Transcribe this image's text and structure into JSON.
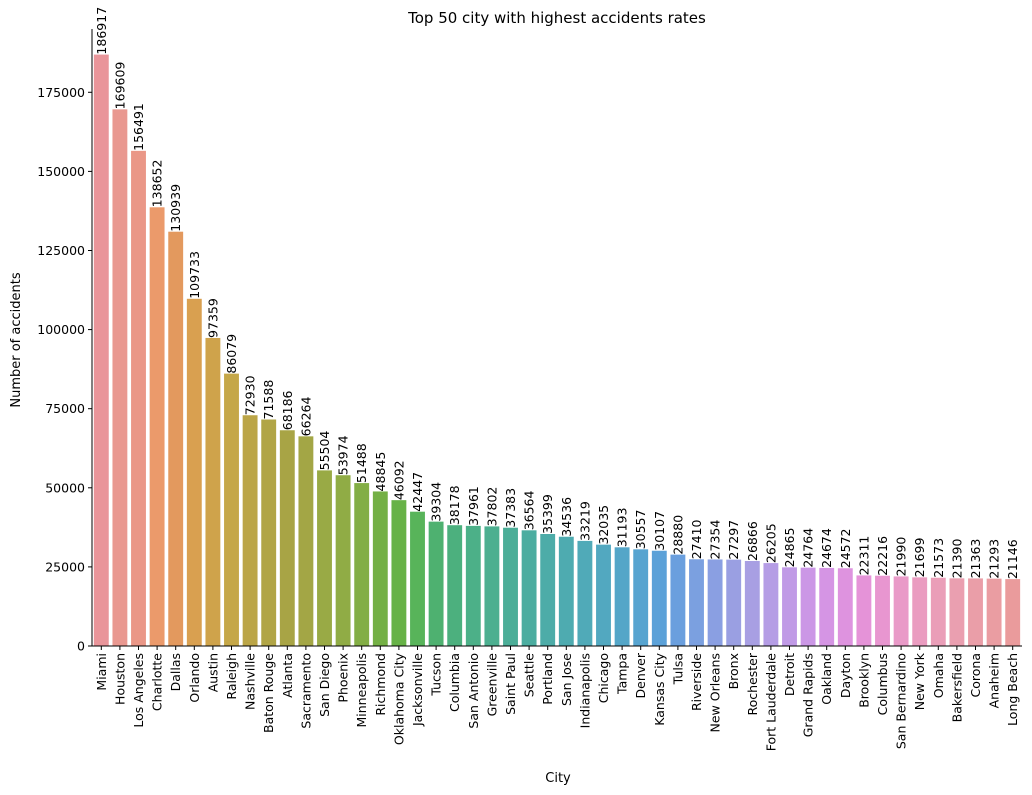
{
  "chart_data": {
    "type": "bar",
    "title": "Top 50 city with highest accidents rates",
    "xlabel": "City",
    "ylabel": "Number of accidents",
    "ylim": [
      0,
      195000
    ],
    "yticks": [
      0,
      25000,
      50000,
      75000,
      100000,
      125000,
      150000,
      175000
    ],
    "grid": false,
    "legend": "none",
    "categories": [
      "Miami",
      "Houston",
      "Los Angeles",
      "Charlotte",
      "Dallas",
      "Orlando",
      "Austin",
      "Raleigh",
      "Nashville",
      "Baton Rouge",
      "Atlanta",
      "Sacramento",
      "San Diego",
      "Phoenix",
      "Minneapolis",
      "Richmond",
      "Oklahoma City",
      "Jacksonville",
      "Tucson",
      "Columbia",
      "San Antonio",
      "Greenville",
      "Saint Paul",
      "Seattle",
      "Portland",
      "San Jose",
      "Indianapolis",
      "Chicago",
      "Tampa",
      "Denver",
      "Kansas City",
      "Tulsa",
      "Riverside",
      "New Orleans",
      "Bronx",
      "Rochester",
      "Fort Lauderdale",
      "Detroit",
      "Grand Rapids",
      "Oakland",
      "Dayton",
      "Brooklyn",
      "Columbus",
      "San Bernardino",
      "New York",
      "Omaha",
      "Bakersfield",
      "Corona",
      "Anaheim",
      "Long Beach"
    ],
    "values": [
      186917,
      169609,
      156491,
      138652,
      130939,
      109733,
      97359,
      86079,
      72930,
      71588,
      68186,
      66264,
      55504,
      53974,
      51488,
      48845,
      46092,
      42447,
      39304,
      38178,
      37961,
      37802,
      37383,
      36564,
      35399,
      34536,
      33219,
      32035,
      31193,
      30557,
      30107,
      28880,
      27410,
      27354,
      27297,
      26866,
      26205,
      24865,
      24764,
      24674,
      24572,
      22311,
      22216,
      21990,
      21699,
      21573,
      21390,
      21363,
      21293,
      21146
    ],
    "colors": [
      "#e9959a",
      "#e99890",
      "#ea9787",
      "#eb9a6b",
      "#e3995e",
      "#d9a050",
      "#cfa34b",
      "#c5a748",
      "#bba547",
      "#b1a546",
      "#a8a445",
      "#a3a645",
      "#99aa45",
      "#90ac45",
      "#83ae45",
      "#74b045",
      "#67b247",
      "#58b45a",
      "#4eb170",
      "#4cb07e",
      "#4cb088",
      "#4caf90",
      "#4cae98",
      "#4cada0",
      "#4daca8",
      "#4eabb0",
      "#50aab8",
      "#52a8c0",
      "#54a6c8",
      "#57a4d0",
      "#5ba1d8",
      "#6a9fde",
      "#7ba0e0",
      "#8a9fe2",
      "#9a9fe2",
      "#a89fe3",
      "#b59de5",
      "#c09ae6",
      "#cb97e6",
      "#d595e4",
      "#de93df",
      "#e593d8",
      "#e896d0",
      "#e99ac8",
      "#ea9cc0",
      "#ea9eb8",
      "#ea9fb0",
      "#ea9ea8",
      "#ea9da2",
      "#ea9b9c"
    ]
  }
}
